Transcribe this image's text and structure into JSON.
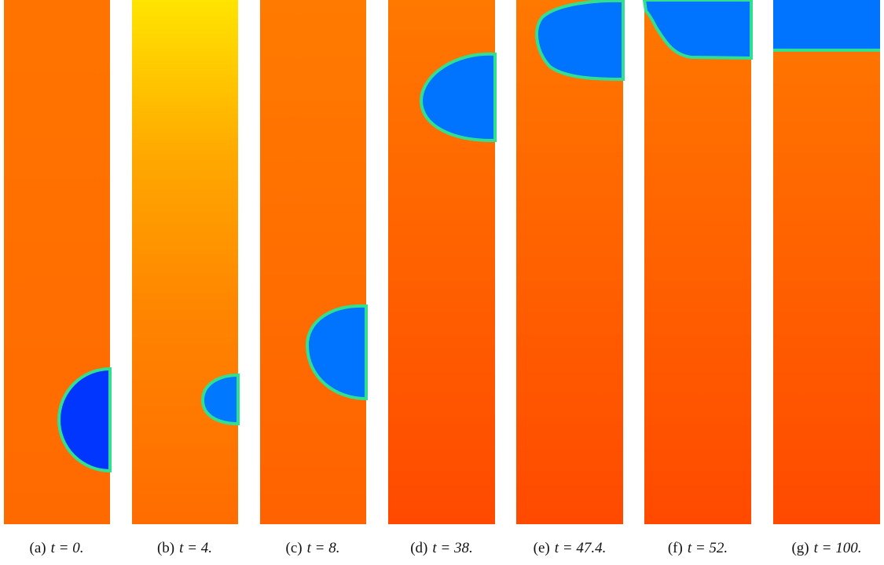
{
  "figure": {
    "panels": [
      {
        "label": "(a)",
        "caption": "t = 0."
      },
      {
        "label": "(b)",
        "caption": "t = 4."
      },
      {
        "label": "(c)",
        "caption": "t = 8."
      },
      {
        "label": "(d)",
        "caption": "t = 38."
      },
      {
        "label": "(e)",
        "caption": "t = 47.4."
      },
      {
        "label": "(f)",
        "caption": "t = 52."
      },
      {
        "label": "(g)",
        "caption": "t = 100."
      }
    ]
  }
}
